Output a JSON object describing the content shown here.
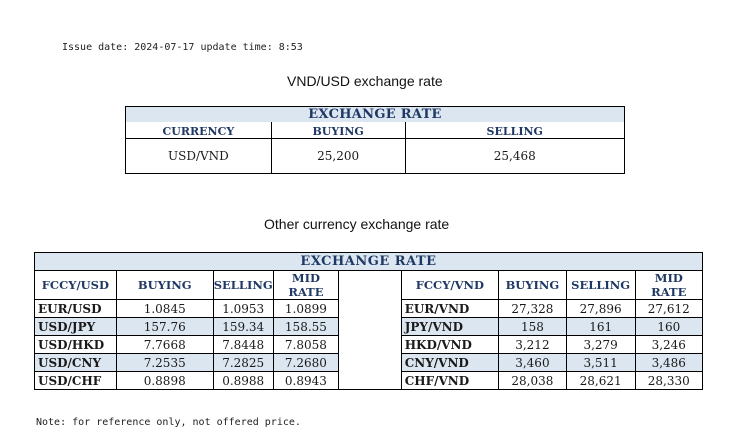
{
  "issue_line": "Issue date: 2024-07-17 update time: 8:53",
  "title_main": "VND/USD exchange rate",
  "main_table": {
    "title": "EXCHANGE RATE",
    "headers": [
      "CURRENCY",
      "BUYING",
      "SELLING"
    ],
    "row": {
      "currency": "USD/VND",
      "buying": "25,200",
      "selling": "25,468"
    }
  },
  "title_other": "Other currency exchange rate",
  "other_table": {
    "title": "EXCHANGE  RATE",
    "headers_left": [
      "FCCY/USD",
      "BUYING",
      "SELLING",
      "MID RATE"
    ],
    "headers_right": [
      "FCCY/VND",
      "BUYING",
      "SELLING",
      "MID RATE"
    ],
    "rows": [
      {
        "l_pair": "EUR/USD",
        "l_buy": "1.0845",
        "l_sell": "1.0953",
        "l_mid": "1.0899",
        "r_pair": "EUR/VND",
        "r_buy": "27,328",
        "r_sell": "27,896",
        "r_mid": "27,612"
      },
      {
        "l_pair": "USD/JPY",
        "l_buy": "157.76",
        "l_sell": "159.34",
        "l_mid": "158.55",
        "r_pair": "JPY/VND",
        "r_buy": "158",
        "r_sell": "161",
        "r_mid": "160"
      },
      {
        "l_pair": "USD/HKD",
        "l_buy": "7.7668",
        "l_sell": "7.8448",
        "l_mid": "7.8058",
        "r_pair": "HKD/VND",
        "r_buy": "3,212",
        "r_sell": "3,279",
        "r_mid": "3,246"
      },
      {
        "l_pair": "USD/CNY",
        "l_buy": "7.2535",
        "l_sell": "7.2825",
        "l_mid": "7.2680",
        "r_pair": "CNY/VND",
        "r_buy": "3,460",
        "r_sell": "3,511",
        "r_mid": "3,486"
      },
      {
        "l_pair": "USD/CHF",
        "l_buy": "0.8898",
        "l_sell": "0.8988",
        "l_mid": "0.8943",
        "r_pair": "CHF/VND",
        "r_buy": "28,038",
        "r_sell": "28,621",
        "r_mid": "28,330"
      }
    ]
  },
  "note": "Note: for reference only, not offered price.",
  "colors": {
    "header_text": "#1f3864",
    "band": "#dce6f1"
  }
}
